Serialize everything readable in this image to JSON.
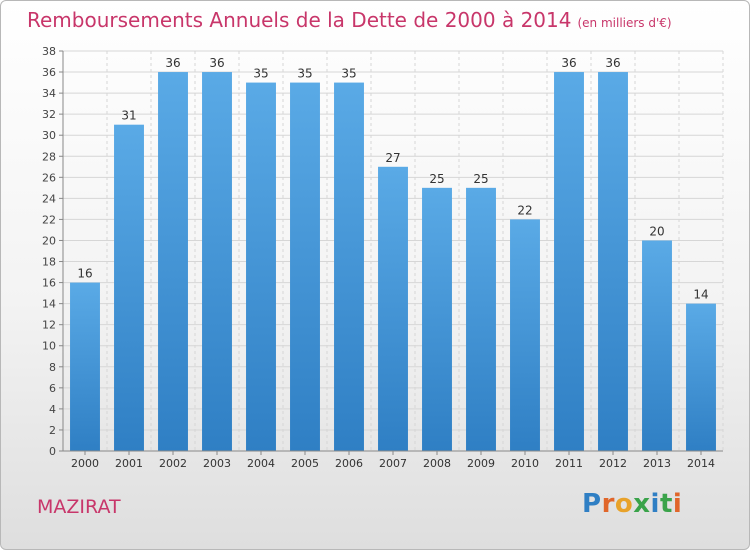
{
  "header": {
    "title": "Remboursements Annuels de la Dette de 2000 à 2014",
    "unit": "(en milliers d'€)"
  },
  "footer": {
    "commune": "MAZIRAT",
    "logo": "Proxiti"
  },
  "colors": {
    "title": "#c8366a",
    "bar_top": "#5aaae6",
    "bar_bottom": "#2f7fc4",
    "logo_letters": [
      "#2f7fc4",
      "#e0662a",
      "#e8a22a",
      "#3aa34a",
      "#2f7fc4",
      "#3aa34a",
      "#e0662a"
    ]
  },
  "chart_data": {
    "type": "bar",
    "title": "Remboursements Annuels de la Dette de 2000 à 2014",
    "categories": [
      "2000",
      "2001",
      "2002",
      "2003",
      "2004",
      "2005",
      "2006",
      "2007",
      "2008",
      "2009",
      "2010",
      "2011",
      "2012",
      "2013",
      "2014"
    ],
    "values": [
      16,
      31,
      36,
      36,
      35,
      35,
      35,
      27,
      25,
      25,
      22,
      36,
      36,
      20,
      14
    ],
    "ylim": [
      0,
      38
    ],
    "yticks": [
      0,
      2,
      4,
      6,
      8,
      10,
      12,
      14,
      16,
      18,
      20,
      22,
      24,
      26,
      28,
      30,
      32,
      34,
      36,
      38
    ],
    "grid": true,
    "data_labels": true
  }
}
